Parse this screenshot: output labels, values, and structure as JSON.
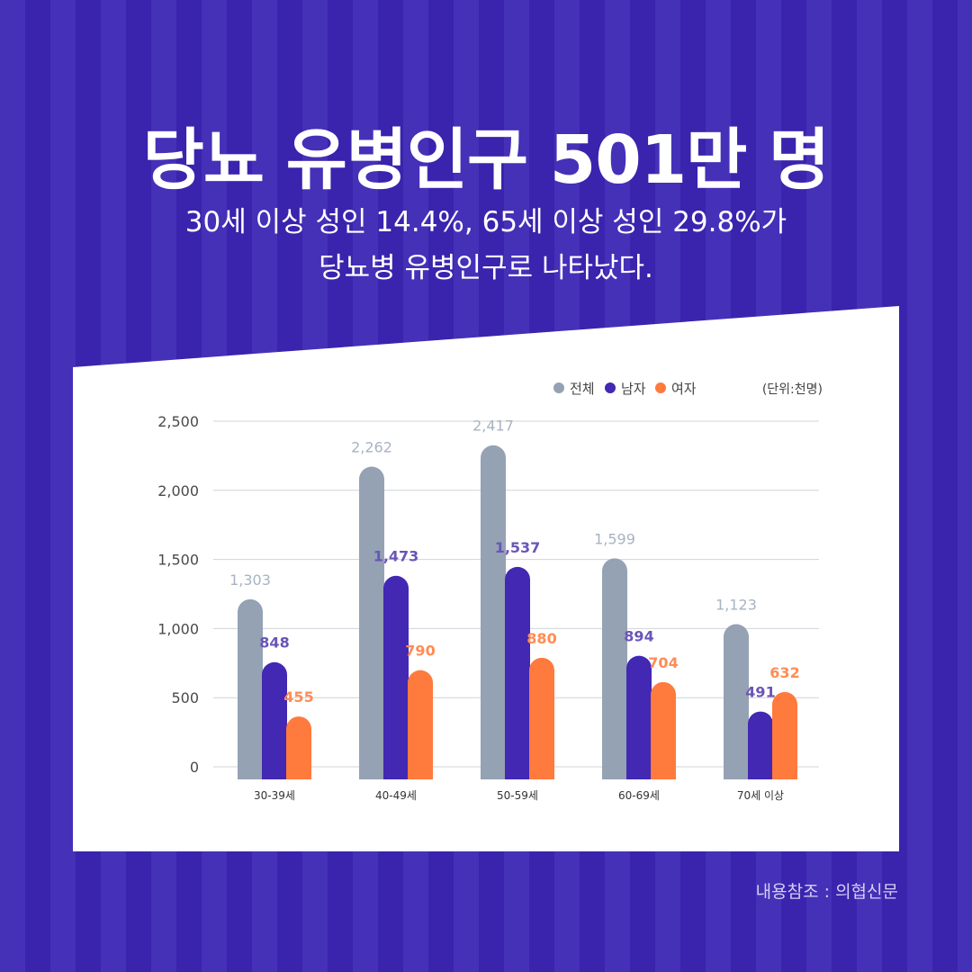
{
  "title": "당뇨 유병인구 501만 명",
  "subtitle": {
    "line1": "30세 이상 성인 14.4%, 65세 이상 성인 29.8%가",
    "line2": "당뇨병 유병인구로 나타났다."
  },
  "source": "내용참조 : 의협신문",
  "colors": {
    "background": "#3c25b0",
    "panel": "#ffffff",
    "total": "#94a2b3",
    "male": "#4228b3",
    "female": "#ff7a3d",
    "male_label": "#6a55b8",
    "total_label": "#a8b3c2",
    "female_label": "#ff8c55"
  },
  "chart_data": {
    "type": "bar",
    "categories": [
      "30-39세",
      "40-49세",
      "50-59세",
      "60-69세",
      "70세 이상"
    ],
    "series": [
      {
        "name": "전체",
        "values": [
          1303,
          2262,
          2417,
          1599,
          1123
        ]
      },
      {
        "name": "남자",
        "values": [
          848,
          1473,
          1537,
          894,
          491
        ]
      },
      {
        "name": "여자",
        "values": [
          455,
          790,
          880,
          704,
          632
        ]
      }
    ],
    "unit_note": "(단위:천명)",
    "y_ticks": [
      "2,500",
      "2,000",
      "1,500",
      "1,000",
      "500",
      "0"
    ],
    "ylim": [
      0,
      2500
    ],
    "grid": true,
    "legend": "top-right"
  }
}
